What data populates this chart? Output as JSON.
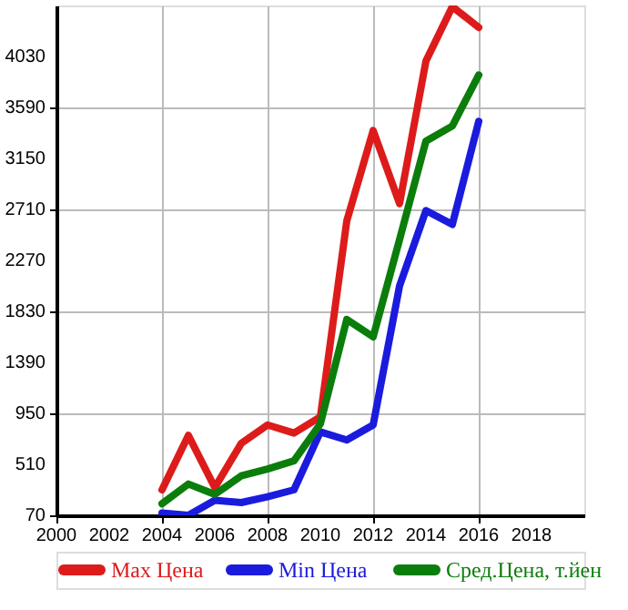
{
  "chart_data": {
    "type": "line",
    "x": [
      2004,
      2005,
      2006,
      2007,
      2008,
      2009,
      2010,
      2011,
      2012,
      2013,
      2014,
      2015,
      2016
    ],
    "series": [
      {
        "name": "Max Цена",
        "color": "#dd1b1b",
        "values": [
          290,
          760,
          310,
          690,
          850,
          780,
          920,
          2610,
          3390,
          2760,
          3990,
          4460,
          4280
        ]
      },
      {
        "name": "Min Цена",
        "color": "#1b1bdd",
        "values": [
          90,
          70,
          200,
          180,
          230,
          290,
          790,
          720,
          850,
          2050,
          2700,
          2580,
          3470
        ]
      },
      {
        "name": "Сред.Цена, т.йен",
        "color": "#0b7d0b",
        "values": [
          170,
          340,
          250,
          410,
          470,
          540,
          860,
          1760,
          1610,
          2450,
          3300,
          3430,
          3870
        ]
      }
    ],
    "xlim": [
      2000,
      2020
    ],
    "xticks": [
      2000,
      2002,
      2004,
      2006,
      2008,
      2010,
      2012,
      2014,
      2016,
      2018
    ],
    "ylim": [
      70,
      4470
    ],
    "yticks": [
      70,
      510,
      950,
      1390,
      1830,
      2270,
      2710,
      3150,
      3590,
      4030
    ],
    "grid": true,
    "legend": "bottom",
    "marker": "none",
    "line_style": "solid"
  }
}
